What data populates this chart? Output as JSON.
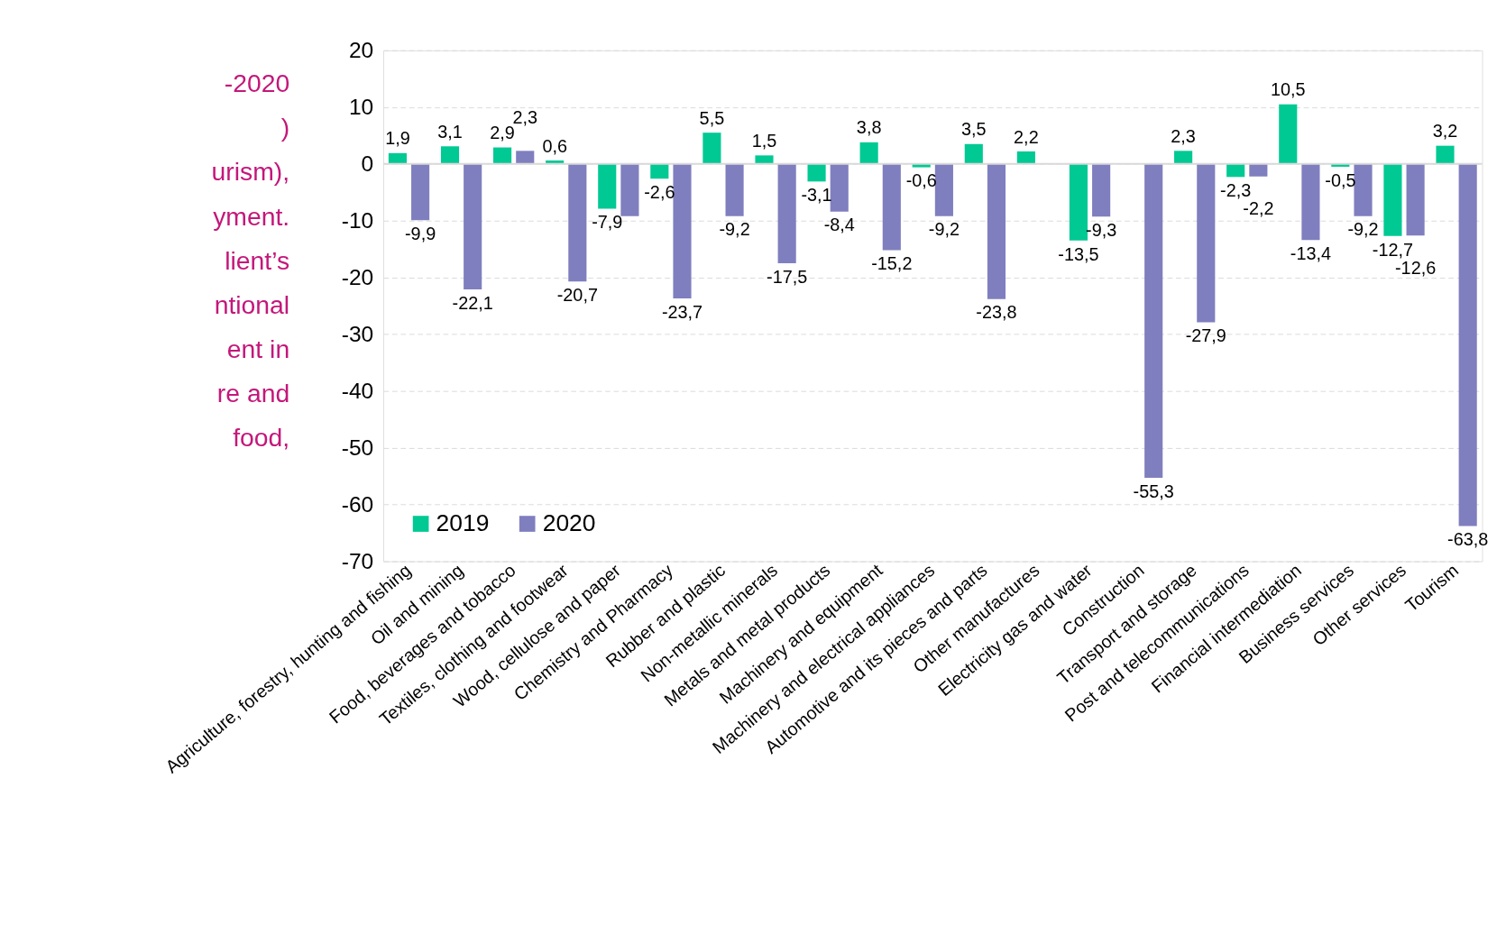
{
  "chart_data": {
    "type": "bar",
    "categories": [
      "Agriculture, forestry, hunting and fishing",
      "Oil and mining",
      "Food, beverages and tobacco",
      "Textiles, clothing and footwear",
      "Wood, cellulose and paper",
      "Chemistry and Pharmacy",
      "Rubber and plastic",
      "Non-metallic minerals",
      "Metals and metal products",
      "Machinery and equipment",
      "Machinery and electrical appliances",
      "Automotive and its pieces and parts",
      "Other manufactures",
      "Electricity gas and water",
      "Construction",
      "Transport and storage",
      "Post and telecommunications",
      "Financial intermediation",
      "Business services",
      "Other services",
      "Tourism"
    ],
    "series": [
      {
        "name": "2019",
        "color": "#00c994",
        "values": [
          1.9,
          3.1,
          2.9,
          0.6,
          -7.9,
          -2.6,
          5.5,
          1.5,
          -3.1,
          3.8,
          -0.6,
          3.5,
          2.2,
          -13.5,
          null,
          2.3,
          -2.3,
          10.5,
          -0.5,
          -12.7,
          3.2
        ],
        "value_labels": [
          "1,9",
          "3,1",
          "2,9",
          "0,6",
          "-7,9",
          "-2,6",
          "5,5",
          "1,5",
          "-3,1",
          "3,8",
          "-0,6",
          "3,5",
          "2,2",
          "-13,5",
          null,
          "2,3",
          "-2,3",
          "10,5",
          "-0,5",
          "-12,7",
          "3,2"
        ]
      },
      {
        "name": "2020",
        "color": "#7f7fbf",
        "values": [
          -9.9,
          -22.1,
          2.3,
          -20.7,
          -9.2,
          -23.7,
          -9.2,
          -17.5,
          -8.4,
          -15.2,
          -9.2,
          -23.8,
          null,
          -9.3,
          -55.3,
          -27.9,
          -2.2,
          -13.4,
          -9.2,
          -12.6,
          -63.8
        ],
        "value_labels": [
          "-9,9",
          "-22,1",
          "2,3",
          "-20,7",
          null,
          "-23,7",
          "-9,2",
          "-17,5",
          "-8,4",
          "-15,2",
          "-9,2",
          "-23,8",
          null,
          "-9,3",
          "-55,3",
          "-27,9",
          "-2,2",
          "-13,4",
          "-9,2",
          "-12,6",
          "-63,8"
        ]
      }
    ],
    "ylim": [
      -70,
      20
    ],
    "yticks": [
      -70,
      -60,
      -50,
      -40,
      -30,
      -20,
      -10,
      0,
      10,
      20
    ],
    "grid": "y",
    "legend": "bottom left",
    "ref_lines": [
      {
        "axis": "y",
        "value": 0,
        "color": "#d9d9d9"
      }
    ],
    "annotations": [
      "-2020",
      ")",
      "urism),",
      "yment.",
      "lient’s",
      "ntional",
      "ent in",
      "re and",
      "food,"
    ]
  }
}
